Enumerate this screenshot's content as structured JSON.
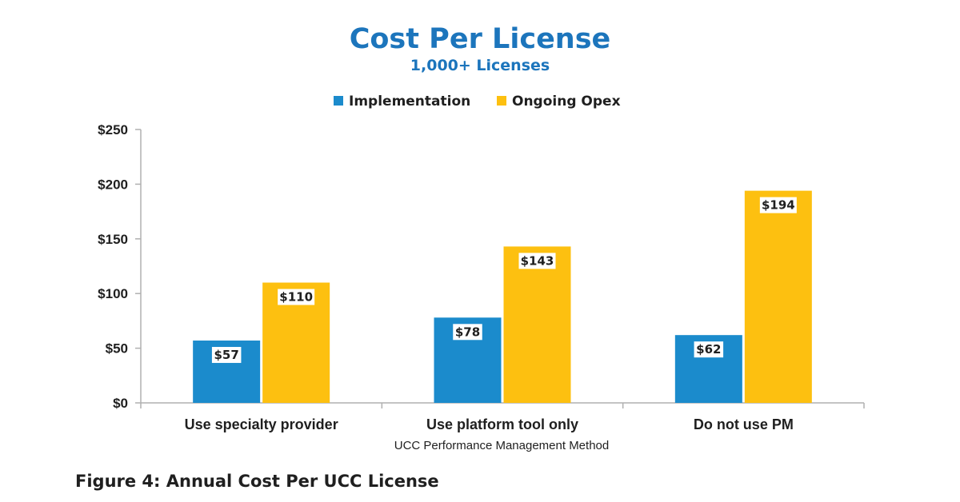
{
  "chart_data": {
    "type": "bar",
    "title": "Cost Per License",
    "subtitle": "1,000+ Licenses",
    "xlabel": "UCC Performance Management Method",
    "ylabel": "",
    "categories": [
      "Use specialty provider",
      "Use platform tool only",
      "Do not use PM"
    ],
    "series": [
      {
        "name": "Implementation",
        "values": [
          57,
          78,
          62
        ],
        "labels": [
          "$57",
          "$78",
          "$62"
        ],
        "color": "#1b8bcc"
      },
      {
        "name": "Ongoing Opex",
        "values": [
          110,
          143,
          194
        ],
        "labels": [
          "$110",
          "$143",
          "$194"
        ],
        "color": "#fdc010"
      }
    ],
    "ylim": [
      0,
      250
    ],
    "yticks": [
      0,
      50,
      100,
      150,
      200,
      250
    ],
    "ytick_labels": [
      "$0",
      "$50",
      "$100",
      "$150",
      "$200",
      "$250"
    ],
    "legend_position": "top-center",
    "grid": false
  },
  "caption": "Figure 4: Annual Cost Per UCC License",
  "colors": {
    "title": "#1c75bc",
    "axis": "#b0b0b0",
    "text": "#1f1f1f"
  }
}
